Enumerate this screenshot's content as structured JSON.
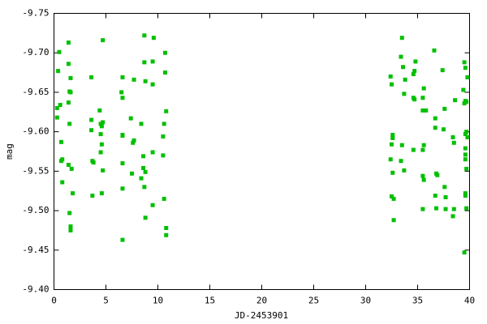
{
  "chart_data": {
    "type": "scatter",
    "xlabel": "JD-2453901",
    "ylabel": "mag",
    "color": "#00c000",
    "xlim": [
      0,
      40
    ],
    "xticks": [
      0,
      5,
      10,
      15,
      20,
      25,
      30,
      35,
      40
    ],
    "ylim": [
      -9.4,
      -9.75
    ],
    "yticks": [
      {
        "value": -9.4,
        "label": "-9.40"
      },
      -9.45,
      {
        "value": -9.5,
        "label": "-9.50"
      },
      -9.55,
      {
        "value": -9.6,
        "label": "-9.60"
      },
      -9.65,
      {
        "value": -9.7,
        "label": "-9.70"
      },
      -9.75
    ],
    "grid": false,
    "x": [
      0.3,
      0.3,
      0.4,
      0.5,
      0.6,
      0.7,
      0.7,
      0.8,
      0.8,
      1.4,
      1.4,
      1.6,
      1.5,
      1.6,
      1.4,
      1.5,
      1.4,
      1.7,
      1.5,
      1.6,
      1.6,
      1.8,
      3.6,
      3.6,
      3.6,
      3.7,
      3.8,
      3.7,
      4.4,
      4.5,
      4.6,
      4.5,
      4.6,
      4.5,
      4.7,
      4.7,
      4.7,
      4.6,
      6.5,
      6.6,
      6.6,
      6.6,
      6.6,
      6.6,
      6.6,
      6.6,
      7.5,
      7.6,
      7.7,
      7.4,
      7.7,
      8.4,
      8.7,
      8.7,
      8.8,
      8.6,
      8.6,
      8.4,
      8.7,
      8.8,
      8.8,
      9.5,
      9.6,
      9.5,
      9.5,
      9.5,
      10.6,
      10.5,
      10.5,
      10.7,
      10.7,
      10.8,
      10.6,
      10.8,
      10.8,
      32.4,
      32.5,
      32.5,
      32.6,
      32.6,
      32.4,
      32.6,
      32.5,
      32.7,
      32.7,
      33.5,
      33.4,
      33.6,
      33.7,
      33.5,
      33.4,
      33.7,
      33.8,
      34.6,
      34.8,
      34.6,
      34.7,
      34.6,
      34.7,
      35.5,
      35.6,
      35.5,
      35.6,
      35.5,
      35.5,
      35.6,
      35.5,
      35.8,
      36.6,
      36.7,
      36.7,
      36.8,
      36.7,
      36.8,
      36.9,
      37.4,
      37.6,
      37.5,
      37.6,
      37.7,
      37.7,
      38.6,
      38.4,
      38.5,
      38.5,
      38.4,
      39.5,
      39.6,
      39.4,
      39.5,
      39.6,
      39.6,
      39.7,
      39.8,
      39.6,
      39.6,
      39.6,
      39.7,
      39.6,
      39.6,
      39.7,
      39.5,
      39.8,
      39.7
    ],
    "values": [
      -9.63,
      -9.618,
      -9.677,
      -9.701,
      -9.634,
      -9.563,
      -9.587,
      -9.565,
      -9.536,
      -9.713,
      -9.686,
      -9.668,
      -9.651,
      -9.65,
      -9.637,
      -9.61,
      -9.558,
      -9.553,
      -9.497,
      -9.48,
      -9.475,
      -9.522,
      -9.669,
      -9.615,
      -9.602,
      -9.563,
      -9.561,
      -9.519,
      -9.627,
      -9.61,
      -9.607,
      -9.597,
      -9.584,
      -9.574,
      -9.551,
      -9.612,
      -9.716,
      -9.522,
      -9.65,
      -9.643,
      -9.669,
      -9.596,
      -9.595,
      -9.528,
      -9.56,
      -9.463,
      -9.547,
      -9.586,
      -9.589,
      -9.617,
      -9.666,
      -9.61,
      -9.688,
      -9.722,
      -9.664,
      -9.569,
      -9.554,
      -9.541,
      -9.53,
      -9.491,
      -9.549,
      -9.689,
      -9.719,
      -9.66,
      -9.574,
      -9.507,
      -9.61,
      -9.594,
      -9.57,
      -9.7,
      -9.675,
      -9.626,
      -9.515,
      -9.478,
      -9.469,
      -9.67,
      -9.66,
      -9.584,
      -9.596,
      -9.592,
      -9.565,
      -9.548,
      -9.518,
      -9.515,
      -9.488,
      -9.719,
      -9.695,
      -9.682,
      -9.648,
      -9.583,
      -9.563,
      -9.551,
      -9.666,
      -9.673,
      -9.689,
      -9.643,
      -9.641,
      -9.577,
      -9.677,
      -9.643,
      -9.655,
      -9.627,
      -9.583,
      -9.577,
      -9.544,
      -9.539,
      -9.502,
      -9.627,
      -9.703,
      -9.617,
      -9.605,
      -9.547,
      -9.519,
      -9.503,
      -9.545,
      -9.678,
      -9.629,
      -9.603,
      -9.53,
      -9.517,
      -9.502,
      -9.64,
      -9.593,
      -9.586,
      -9.502,
      -9.493,
      -9.688,
      -9.681,
      -9.653,
      -9.636,
      -9.639,
      -9.597,
      -9.6,
      -9.593,
      -9.579,
      -9.571,
      -9.565,
      -9.553,
      -9.522,
      -9.519,
      -9.503,
      -9.447,
      -9.669,
      -9.638
    ]
  }
}
